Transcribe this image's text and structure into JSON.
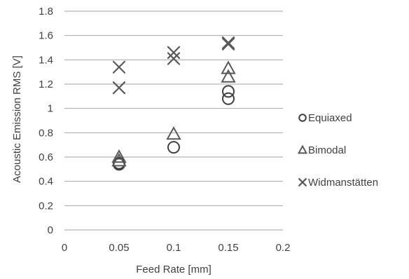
{
  "chart_data": {
    "type": "scatter",
    "title": "",
    "xlabel": "Feed Rate [mm]",
    "ylabel": "Acoustic Emission RMS [V]",
    "xlim": [
      0,
      0.2
    ],
    "ylim": [
      0,
      1.8
    ],
    "xticks": [
      "0",
      "0.05",
      "0.1",
      "0.15",
      "0.2"
    ],
    "yticks": [
      "0",
      "0.2",
      "0.4",
      "0.6",
      "0.8",
      "1",
      "1.2",
      "1.4",
      "1.6",
      "1.8"
    ],
    "grid": "horizontal",
    "legend_position": "right",
    "series": [
      {
        "name": "Equiaxed",
        "marker": "circle",
        "color": "#404040",
        "points": [
          {
            "x": 0.05,
            "y": 0.54
          },
          {
            "x": 0.05,
            "y": 0.55
          },
          {
            "x": 0.1,
            "y": 0.68
          },
          {
            "x": 0.15,
            "y": 1.08
          },
          {
            "x": 0.15,
            "y": 1.14
          }
        ]
      },
      {
        "name": "Bimodal",
        "marker": "triangle",
        "color": "#595959",
        "points": [
          {
            "x": 0.05,
            "y": 0.6
          },
          {
            "x": 0.05,
            "y": 0.57
          },
          {
            "x": 0.1,
            "y": 0.79
          },
          {
            "x": 0.15,
            "y": 1.26
          },
          {
            "x": 0.15,
            "y": 1.33
          }
        ]
      },
      {
        "name": "Widmanstätten",
        "marker": "x",
        "color": "#595959",
        "points": [
          {
            "x": 0.05,
            "y": 1.17
          },
          {
            "x": 0.05,
            "y": 1.34
          },
          {
            "x": 0.1,
            "y": 1.41
          },
          {
            "x": 0.1,
            "y": 1.46
          },
          {
            "x": 0.15,
            "y": 1.53
          },
          {
            "x": 0.15,
            "y": 1.54
          }
        ]
      }
    ]
  }
}
